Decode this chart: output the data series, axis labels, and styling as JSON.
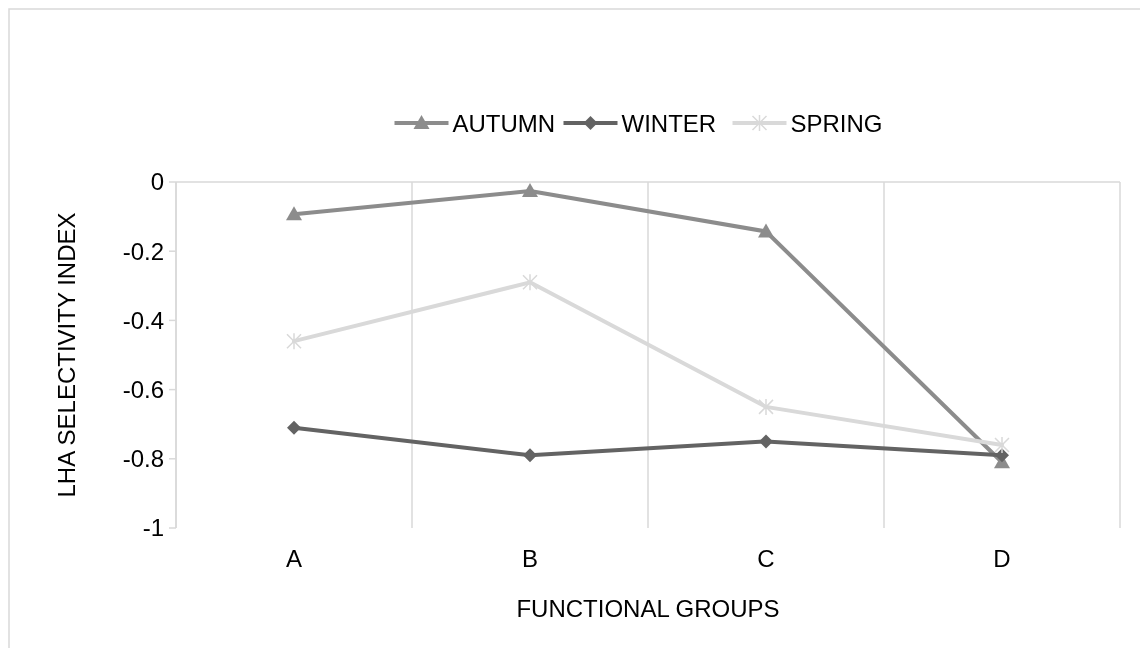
{
  "chart_data": {
    "type": "line",
    "xlabel": "FUNCTIONAL GROUPS",
    "ylabel": "LHA SELECTIVITY INDEX",
    "categories": [
      "A",
      "B",
      "C",
      "D"
    ],
    "series": [
      {
        "name": "AUTUMN",
        "color": "#8c8c8c",
        "marker": "triangle",
        "values": [
          -0.093,
          -0.026,
          -0.143,
          -0.81
        ]
      },
      {
        "name": "WINTER",
        "color": "#636363",
        "marker": "diamond",
        "values": [
          -0.71,
          -0.79,
          -0.75,
          -0.79
        ]
      },
      {
        "name": "SPRING",
        "color": "#d9d9d9",
        "marker": "cross",
        "values": [
          -0.46,
          -0.29,
          -0.65,
          -0.76
        ]
      }
    ],
    "ylim": [
      -1,
      0
    ],
    "yticks": [
      -1,
      -0.8,
      -0.6,
      -0.4,
      -0.2,
      0
    ],
    "grid": "x",
    "legend": "top",
    "line_style": "solid"
  }
}
